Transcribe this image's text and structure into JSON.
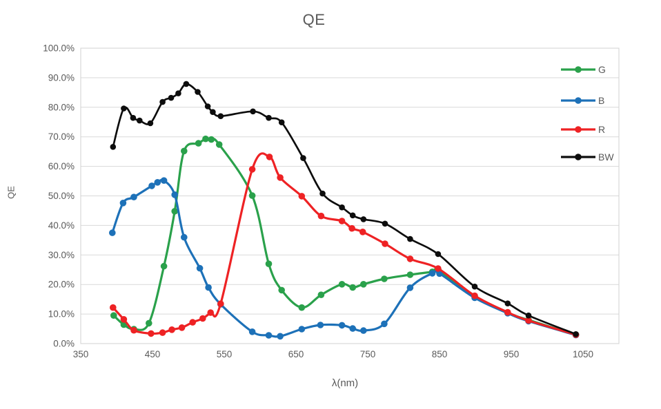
{
  "chart_data": {
    "type": "line",
    "title": "QE",
    "xlabel": "λ(nm)",
    "ylabel": "QE",
    "grid": "horizontal",
    "legend_position": "inside-right",
    "x_axis": {
      "min": 350,
      "max": 1100,
      "ticks": [
        350,
        450,
        550,
        650,
        750,
        850,
        950,
        1050
      ]
    },
    "y_axis": {
      "min": 0,
      "max": 100,
      "ticks": [
        0,
        10,
        20,
        30,
        40,
        50,
        60,
        70,
        80,
        90,
        100
      ],
      "tick_labels": [
        "0.0%",
        "10.0%",
        "20.0%",
        "30.0%",
        "40.0%",
        "50.0%",
        "60.0%",
        "70.0%",
        "80.0%",
        "90.0%",
        "100.0%"
      ]
    },
    "styles": {
      "gridline_color": "#d9d9d9",
      "plot_border_color": "#d0d0d0",
      "axis_text_color": "#595959",
      "background": "#ffffff"
    },
    "series": [
      {
        "name": "G",
        "color": "#2aa14b",
        "points": [
          [
            396,
            9.5
          ],
          [
            410,
            6.4
          ],
          [
            424,
            4.9
          ],
          [
            445,
            6.9
          ],
          [
            466,
            26.2
          ],
          [
            481,
            44.8
          ],
          [
            494,
            65.2
          ],
          [
            514,
            67.8
          ],
          [
            524,
            69.3
          ],
          [
            532,
            69.1
          ],
          [
            543,
            67.4
          ],
          [
            589,
            50.1
          ],
          [
            612,
            27.0
          ],
          [
            630,
            18.1
          ],
          [
            658,
            12.2
          ],
          [
            685,
            16.5
          ],
          [
            714,
            20.1
          ],
          [
            729,
            19.0
          ],
          [
            744,
            20.1
          ],
          [
            773,
            21.9
          ],
          [
            809,
            23.3
          ],
          [
            840,
            24.3
          ],
          [
            849,
            24.6
          ],
          [
            899,
            16.0
          ],
          [
            945,
            10.4
          ],
          [
            974,
            8.0
          ],
          [
            1040,
            3.0
          ]
        ]
      },
      {
        "name": "B",
        "color": "#1d71b8",
        "points": [
          [
            394,
            37.5
          ],
          [
            409,
            47.6
          ],
          [
            424,
            49.6
          ],
          [
            449,
            53.4
          ],
          [
            457,
            54.6
          ],
          [
            466,
            55.2
          ],
          [
            481,
            50.4
          ],
          [
            494,
            36.0
          ],
          [
            516,
            25.5
          ],
          [
            528,
            19.0
          ],
          [
            545,
            13.3
          ],
          [
            589,
            4.0
          ],
          [
            612,
            2.8
          ],
          [
            628,
            2.5
          ],
          [
            658,
            4.9
          ],
          [
            684,
            6.3
          ],
          [
            714,
            6.2
          ],
          [
            729,
            5.1
          ],
          [
            744,
            4.4
          ],
          [
            773,
            6.7
          ],
          [
            809,
            18.9
          ],
          [
            840,
            23.8
          ],
          [
            850,
            23.7
          ],
          [
            899,
            15.5
          ],
          [
            945,
            10.3
          ],
          [
            974,
            7.6
          ],
          [
            1040,
            2.9
          ]
        ]
      },
      {
        "name": "R",
        "color": "#ee2224",
        "points": [
          [
            395,
            12.2
          ],
          [
            410,
            8.2
          ],
          [
            424,
            4.5
          ],
          [
            448,
            3.4
          ],
          [
            464,
            3.7
          ],
          [
            477,
            4.7
          ],
          [
            491,
            5.4
          ],
          [
            506,
            7.2
          ],
          [
            520,
            8.5
          ],
          [
            531,
            10.5
          ],
          [
            545,
            13.5
          ],
          [
            589,
            59.0
          ],
          [
            613,
            63.2
          ],
          [
            628,
            56.2
          ],
          [
            658,
            49.9
          ],
          [
            685,
            43.2
          ],
          [
            714,
            41.5
          ],
          [
            728,
            39.0
          ],
          [
            743,
            37.8
          ],
          [
            774,
            33.8
          ],
          [
            809,
            28.7
          ],
          [
            848,
            25.4
          ],
          [
            899,
            16.2
          ],
          [
            945,
            10.6
          ],
          [
            974,
            7.8
          ],
          [
            1040,
            3.0
          ]
        ]
      },
      {
        "name": "BW",
        "color": "#0d0d0d",
        "points": [
          [
            395,
            66.6
          ],
          [
            410,
            79.6
          ],
          [
            423,
            76.4
          ],
          [
            432,
            75.5
          ],
          [
            447,
            74.6
          ],
          [
            464,
            81.8
          ],
          [
            476,
            83.2
          ],
          [
            486,
            84.7
          ],
          [
            497,
            87.9
          ],
          [
            513,
            85.2
          ],
          [
            527,
            80.3
          ],
          [
            534,
            78.4
          ],
          [
            545,
            77.0
          ],
          [
            590,
            78.6
          ],
          [
            612,
            76.4
          ],
          [
            630,
            74.9
          ],
          [
            660,
            62.8
          ],
          [
            687,
            50.8
          ],
          [
            714,
            46.1
          ],
          [
            729,
            43.4
          ],
          [
            744,
            42.1
          ],
          [
            774,
            40.6
          ],
          [
            809,
            35.4
          ],
          [
            848,
            30.3
          ],
          [
            899,
            19.3
          ],
          [
            945,
            13.6
          ],
          [
            974,
            9.5
          ],
          [
            1040,
            3.2
          ]
        ]
      }
    ]
  }
}
